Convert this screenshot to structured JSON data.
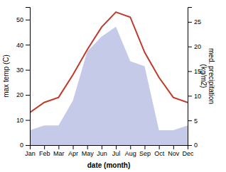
{
  "chart_data": {
    "type": "line",
    "categories": [
      "Jan",
      "Feb",
      "Mar",
      "Apr",
      "May",
      "Jun",
      "Jul",
      "Aug",
      "Sep",
      "Oct",
      "Nov",
      "Dec"
    ],
    "xlabel": "date (month)",
    "ylabel": "max temp (C)",
    "y2label": "med. precipitation\n(kg/m2)",
    "ylim": [
      0,
      55
    ],
    "yticks": [
      0,
      10,
      20,
      30,
      40,
      50
    ],
    "y2lim": [
      0,
      28
    ],
    "y2ticks": [
      0,
      5,
      10,
      15,
      20,
      25
    ],
    "series": [
      {
        "type": "area",
        "axis": "y2",
        "color": "#c5cae9",
        "values": [
          3,
          4,
          4,
          9,
          19,
          22,
          24,
          17,
          16,
          3,
          3,
          4
        ]
      },
      {
        "type": "line",
        "color": "#c0392b",
        "values": [
          13,
          17,
          19,
          28,
          38,
          47,
          53,
          51,
          37,
          27,
          19,
          17
        ]
      }
    ]
  }
}
